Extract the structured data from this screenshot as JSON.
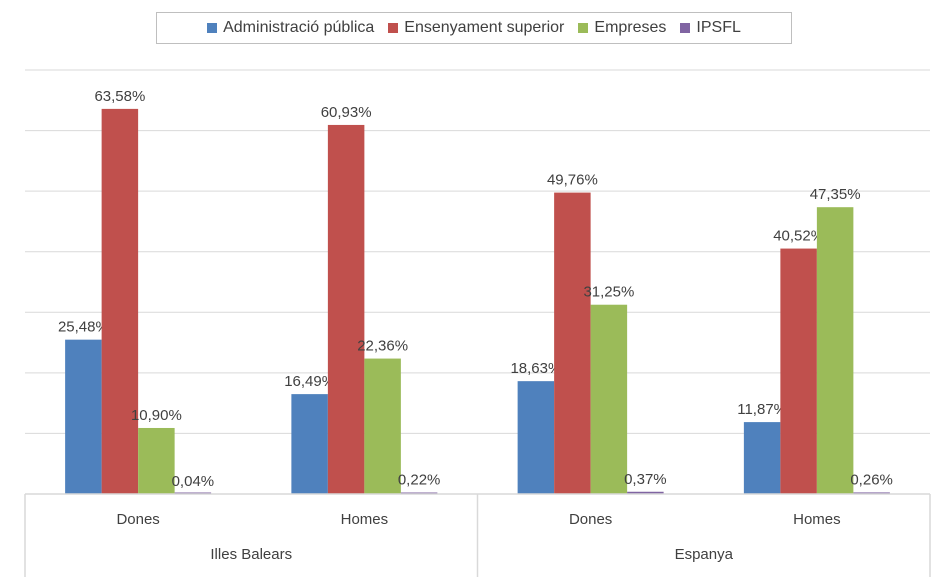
{
  "chart_data": {
    "type": "bar",
    "title": "",
    "xlabel": "",
    "ylabel": "",
    "ylim": [
      0,
      70
    ],
    "grid": true,
    "legend_position": "top",
    "groups": [
      "Illes Balears",
      "Espanya"
    ],
    "categories": [
      "Dones",
      "Homes",
      "Dones",
      "Homes"
    ],
    "category_group": [
      0,
      0,
      1,
      1
    ],
    "series": [
      {
        "name": "Administració pública",
        "color": "#4f81bd",
        "values": [
          25.48,
          16.49,
          18.63,
          11.87
        ],
        "labels": [
          "25,48%",
          "16,49%",
          "18,63%",
          "11,87%"
        ]
      },
      {
        "name": "Ensenyament superior",
        "color": "#c0504d",
        "values": [
          63.58,
          60.93,
          49.76,
          40.52
        ],
        "labels": [
          "63,58%",
          "60,93%",
          "49,76%",
          "40,52%"
        ]
      },
      {
        "name": "Empreses",
        "color": "#9bbb59",
        "values": [
          10.9,
          22.36,
          31.25,
          47.35
        ],
        "labels": [
          "10,90%",
          "22,36%",
          "31,25%",
          "47,35%"
        ]
      },
      {
        "name": "IPSFL",
        "color": "#8064a2",
        "values": [
          0.04,
          0.22,
          0.37,
          0.26
        ],
        "labels": [
          "0,04%",
          "0,22%",
          "0,37%",
          "0,26%"
        ]
      }
    ]
  }
}
